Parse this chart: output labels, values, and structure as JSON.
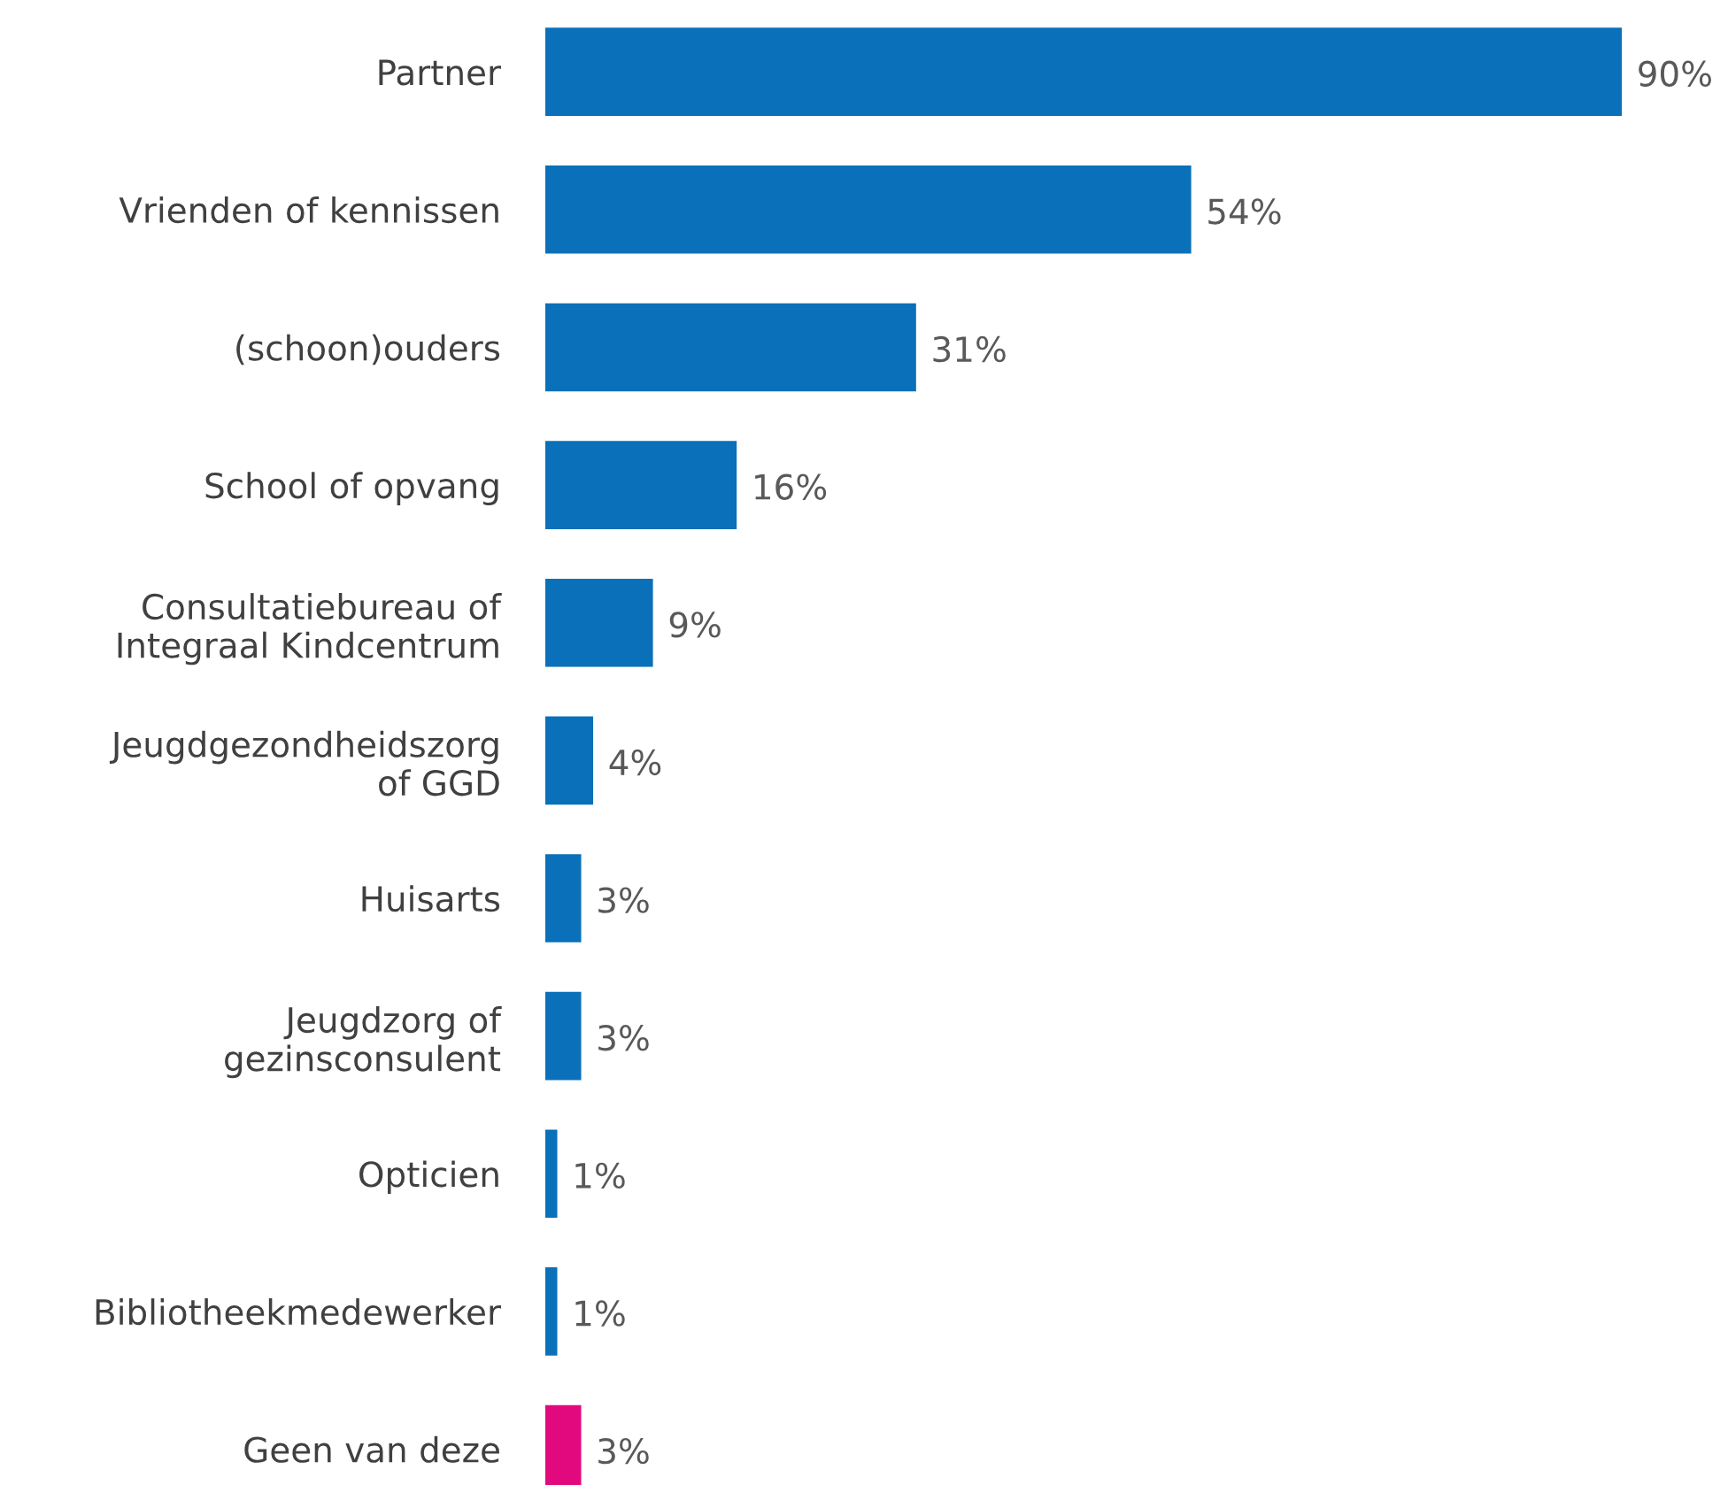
{
  "chart_data": {
    "type": "bar",
    "orientation": "horizontal",
    "categories": [
      "Partner",
      "Vrienden of kennissen",
      "(schoon)ouders",
      "School of opvang",
      "Consultatiebureau of\nIntegraal Kindcentrum",
      "Jeugdgezondheidszorg\nof GGD",
      "Huisarts",
      "Jeugdzorg of\ngezinsconsulent",
      "Opticien",
      "Bibliotheekmedewerker",
      "Geen van deze"
    ],
    "values": [
      90,
      54,
      31,
      16,
      9,
      4,
      3,
      3,
      1,
      1,
      3
    ],
    "colors": [
      "#0a70b9",
      "#0a70b9",
      "#0a70b9",
      "#0a70b9",
      "#0a70b9",
      "#0a70b9",
      "#0a70b9",
      "#0a70b9",
      "#0a70b9",
      "#0a70b9",
      "#e2097f"
    ],
    "value_labels": [
      "90%",
      "54%",
      "31%",
      "16%",
      "9%",
      "4%",
      "3%",
      "3%",
      "1%",
      "1%",
      "3%"
    ],
    "grid": false,
    "legend": false
  }
}
